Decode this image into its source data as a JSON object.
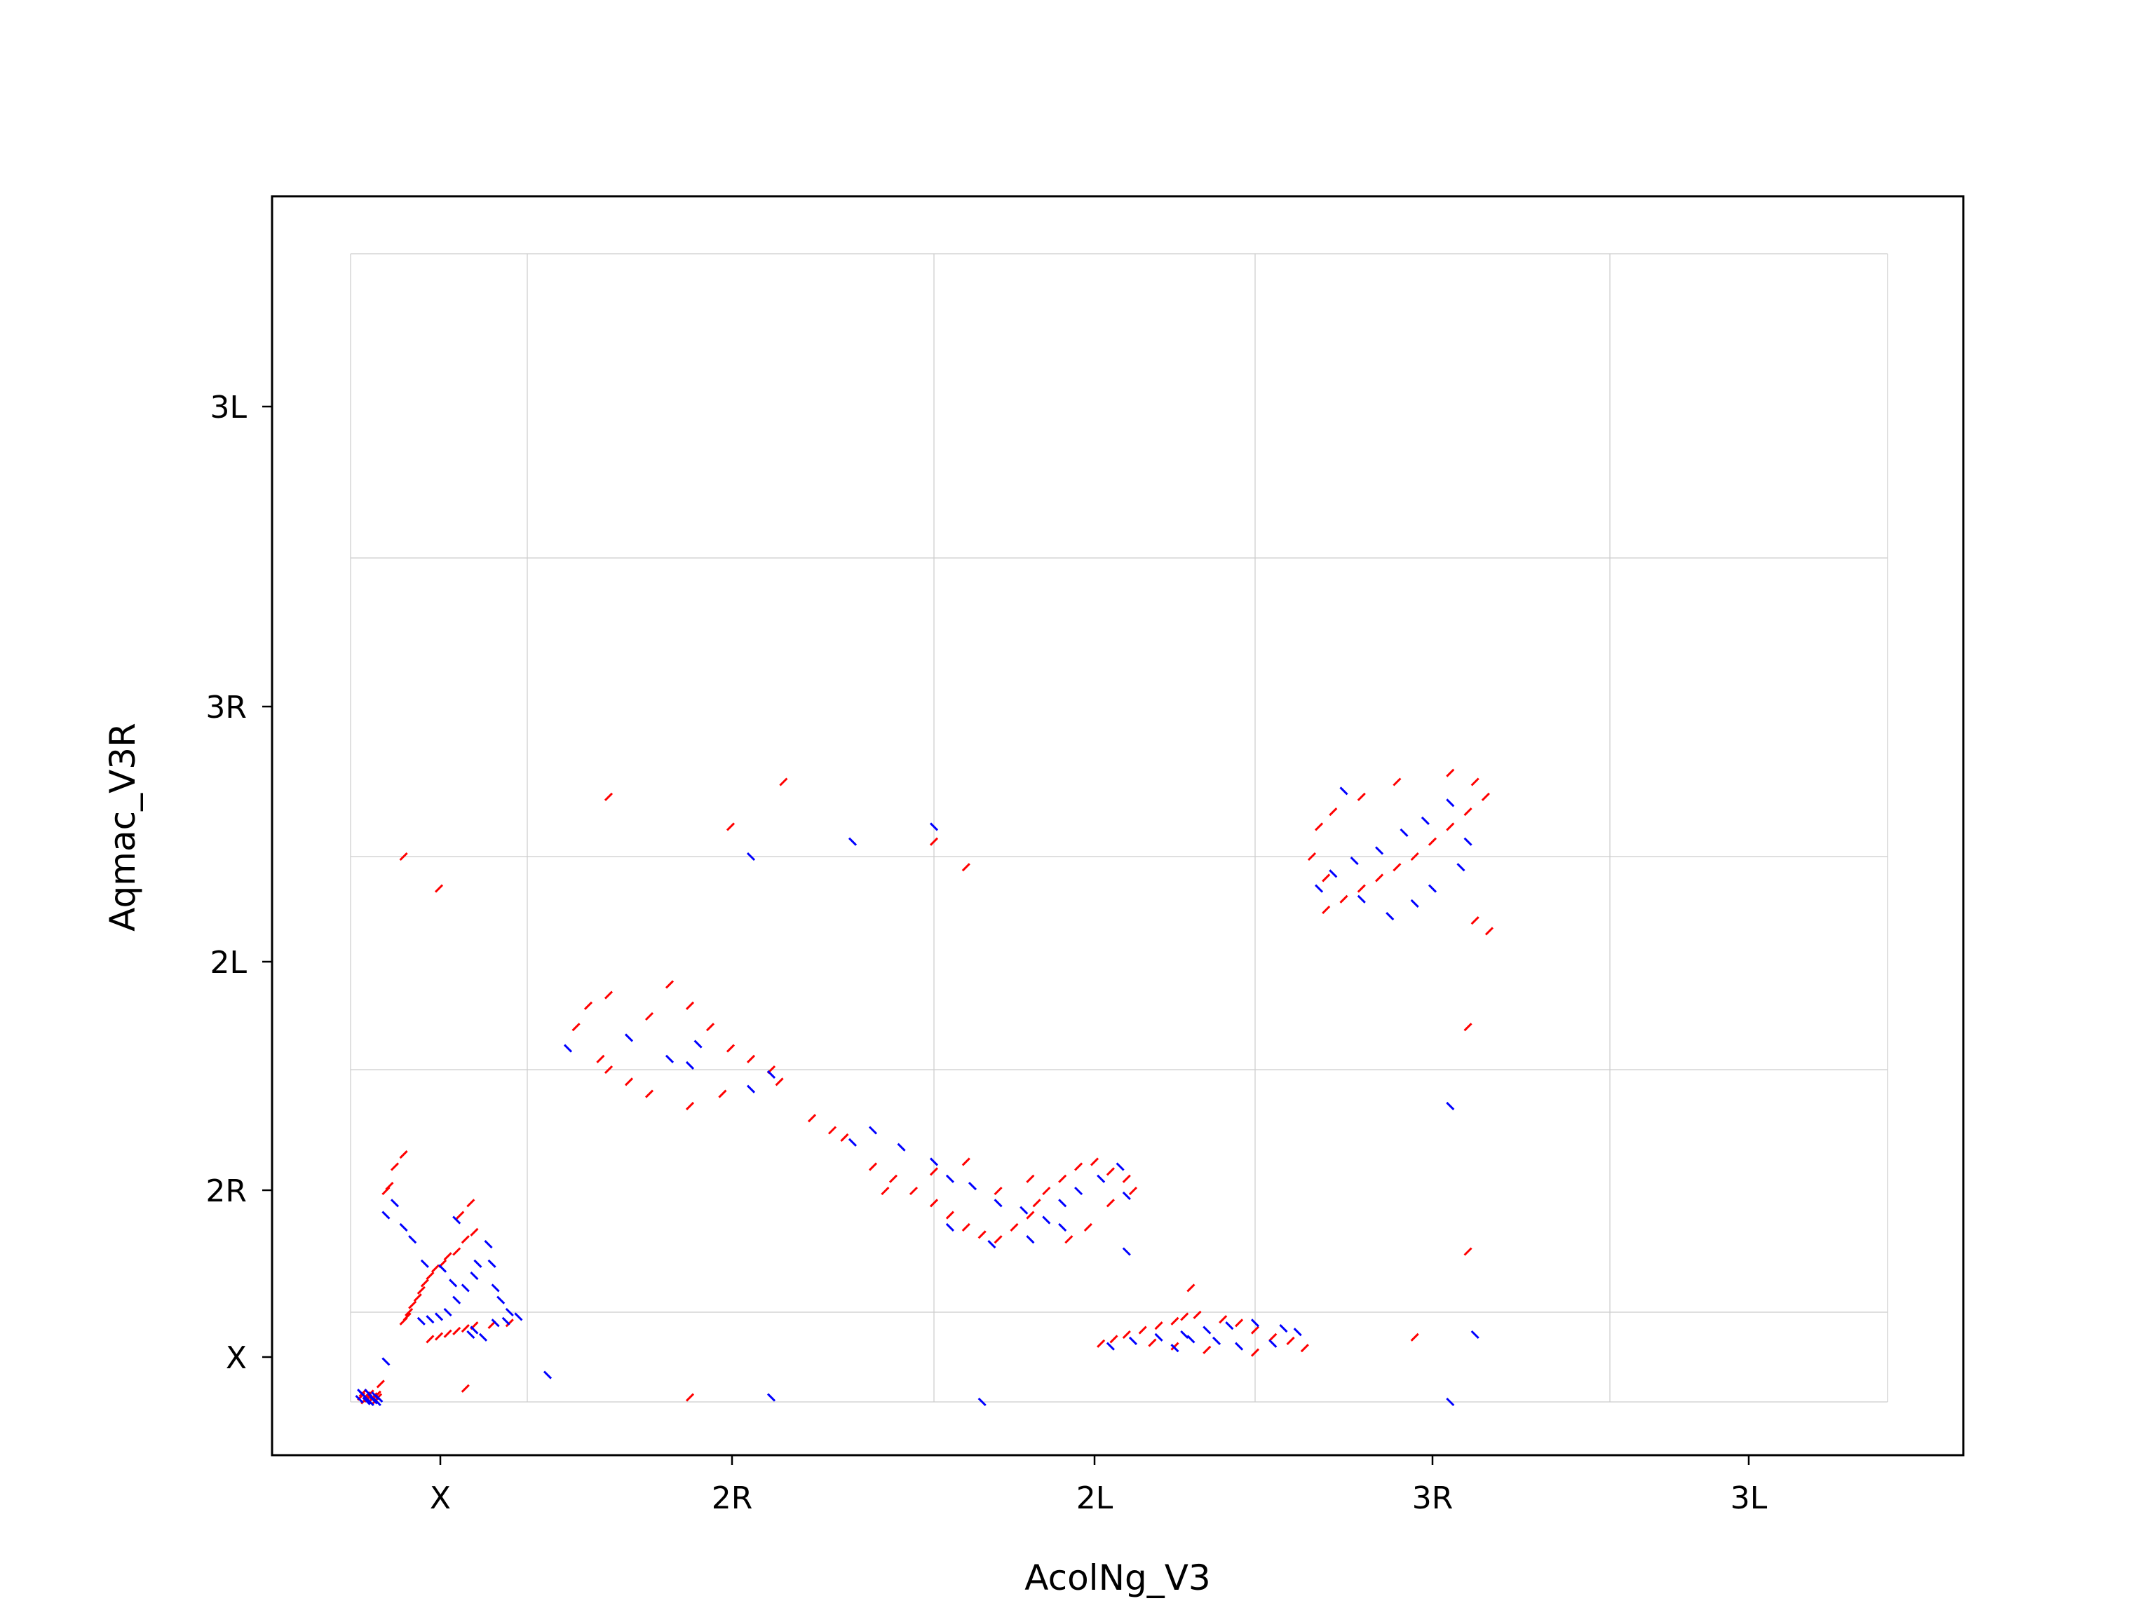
{
  "chart_data": {
    "type": "scatter",
    "title": "",
    "xlabel": "AcolNg_V3",
    "ylabel": "Aqmac_V3R",
    "x_chromosomes": [
      "X",
      "2R",
      "2L",
      "3R",
      "3L"
    ],
    "y_chromosomes": [
      "X",
      "2R",
      "2L",
      "3R",
      "3L"
    ],
    "grid": true,
    "legend": "none",
    "colors": {
      "forward": "#ff0000",
      "reverse": "#0000ff",
      "grid": "#cccccc",
      "frame": "#000000"
    },
    "note_units": "positions in cumulative genome coordinates (chromosome blocks in order X, 2R, 2L, 3R, 3L along each axis)",
    "series": [
      {
        "name": "",
        "color": "#ff0000",
        "points": [
          [
            0.08,
            0.02
          ],
          [
            0.09,
            0.07
          ],
          [
            0.1,
            0.04
          ],
          [
            0.11,
            0.09
          ],
          [
            0.12,
            0.03
          ],
          [
            0.13,
            0.06
          ],
          [
            0.14,
            0.01
          ],
          [
            0.15,
            0.08
          ],
          [
            0.06,
            0.06
          ],
          [
            0.07,
            0.1
          ],
          [
            0.155,
            0.05
          ],
          [
            0.17,
            0.2
          ],
          [
            0.45,
            0.7
          ],
          [
            0.5,
            0.73
          ],
          [
            0.55,
            0.76
          ],
          [
            0.6,
            0.79
          ],
          [
            0.65,
            0.82
          ],
          [
            0.7,
            0.85
          ],
          [
            0.8,
            0.86
          ],
          [
            0.9,
            0.88
          ],
          [
            0.3,
            0.9
          ],
          [
            0.32,
            0.95
          ],
          [
            0.33,
            1.0
          ],
          [
            0.35,
            1.03
          ],
          [
            0.38,
            1.06
          ],
          [
            0.4,
            1.09
          ],
          [
            0.42,
            1.12
          ],
          [
            0.45,
            1.15
          ],
          [
            0.48,
            1.18
          ],
          [
            0.52,
            1.2
          ],
          [
            0.55,
            1.23
          ],
          [
            0.6,
            1.25
          ],
          [
            0.65,
            1.3
          ],
          [
            0.7,
            1.33
          ],
          [
            0.2,
            1.5
          ],
          [
            0.22,
            1.52
          ],
          [
            0.25,
            1.6
          ],
          [
            0.3,
            1.65
          ],
          [
            0.62,
            1.4
          ],
          [
            0.68,
            1.45
          ],
          [
            1.12,
            2.2
          ],
          [
            1.15,
            2.3
          ],
          [
            1.2,
            2.35
          ],
          [
            1.3,
            2.25
          ],
          [
            1.35,
            2.4
          ],
          [
            1.4,
            2.3
          ],
          [
            1.45,
            2.2
          ],
          [
            1.5,
            2.1
          ],
          [
            1.55,
            2.05
          ],
          [
            1.6,
            2.0
          ],
          [
            1.62,
            1.95
          ],
          [
            1.48,
            1.9
          ],
          [
            1.4,
            1.85
          ],
          [
            1.3,
            1.9
          ],
          [
            1.25,
            1.95
          ],
          [
            1.2,
            2.0
          ],
          [
            1.18,
            2.05
          ],
          [
            1.7,
            1.8
          ],
          [
            1.75,
            1.75
          ],
          [
            1.78,
            1.72
          ],
          [
            1.85,
            1.6
          ],
          [
            1.9,
            1.55
          ],
          [
            1.95,
            1.5
          ],
          [
            2.0,
            1.45
          ],
          [
            2.05,
            1.4
          ],
          [
            2.1,
            1.35
          ],
          [
            2.15,
            1.32
          ],
          [
            2.2,
            1.3
          ],
          [
            2.25,
            1.35
          ],
          [
            2.3,
            1.4
          ],
          [
            2.32,
            1.45
          ],
          [
            2.35,
            1.5
          ],
          [
            2.4,
            1.55
          ],
          [
            2.45,
            1.6
          ],
          [
            2.5,
            1.62
          ],
          [
            2.55,
            1.58
          ],
          [
            2.6,
            1.55
          ],
          [
            2.62,
            1.5
          ],
          [
            2.55,
            1.45
          ],
          [
            2.48,
            1.35
          ],
          [
            2.42,
            1.3
          ],
          [
            1.88,
            1.5
          ],
          [
            2.0,
            1.58
          ],
          [
            2.1,
            1.62
          ],
          [
            2.2,
            1.5
          ],
          [
            2.3,
            1.55
          ],
          [
            2.52,
            0.65
          ],
          [
            2.56,
            0.7
          ],
          [
            2.6,
            0.75
          ],
          [
            2.65,
            0.8
          ],
          [
            2.7,
            0.85
          ],
          [
            2.75,
            0.9
          ],
          [
            2.78,
            0.95
          ],
          [
            2.82,
            0.97
          ],
          [
            2.9,
            0.92
          ],
          [
            2.95,
            0.88
          ],
          [
            3.0,
            0.8
          ],
          [
            3.05,
            0.72
          ],
          [
            3.1,
            0.68
          ],
          [
            3.14,
            0.6
          ],
          [
            3.0,
            0.55
          ],
          [
            2.85,
            0.58
          ],
          [
            2.75,
            0.62
          ],
          [
            2.68,
            0.66
          ],
          [
            3.2,
            2.75
          ],
          [
            3.25,
            2.8
          ],
          [
            3.3,
            2.85
          ],
          [
            3.35,
            2.9
          ],
          [
            3.4,
            2.95
          ],
          [
            3.45,
            3.0
          ],
          [
            3.5,
            3.05
          ],
          [
            3.55,
            3.1
          ],
          [
            3.6,
            3.15
          ],
          [
            3.65,
            3.2
          ],
          [
            3.62,
            3.25
          ],
          [
            3.55,
            3.28
          ],
          [
            3.4,
            3.25
          ],
          [
            3.3,
            3.2
          ],
          [
            3.22,
            3.15
          ],
          [
            3.18,
            3.1
          ],
          [
            3.16,
            3.0
          ],
          [
            3.2,
            2.9
          ],
          [
            3.62,
            2.7
          ],
          [
            3.66,
            2.65
          ],
          [
            0.3,
            3.0
          ],
          [
            0.5,
            2.85
          ],
          [
            1.2,
            3.2
          ],
          [
            1.5,
            3.1
          ],
          [
            1.63,
            3.25
          ],
          [
            2.0,
            3.05
          ],
          [
            2.1,
            2.95
          ],
          [
            2.8,
            1.1
          ],
          [
            3.45,
            0.72
          ],
          [
            3.6,
            1.25
          ],
          [
            3.6,
            2.2
          ],
          [
            1.4,
            0.05
          ],
          [
            0.65,
            0.15
          ]
        ]
      },
      {
        "name": "",
        "color": "#0000ff",
        "points": [
          [
            0.05,
            0.03
          ],
          [
            0.07,
            0.08
          ],
          [
            0.09,
            0.01
          ],
          [
            0.1,
            0.1
          ],
          [
            0.12,
            0.05
          ],
          [
            0.13,
            0.02
          ],
          [
            0.14,
            0.07
          ],
          [
            0.16,
            0.04
          ],
          [
            0.06,
            0.1
          ],
          [
            0.11,
            0.0
          ],
          [
            0.15,
            0.0
          ],
          [
            0.4,
            0.9
          ],
          [
            0.45,
            0.92
          ],
          [
            0.5,
            0.95
          ],
          [
            0.55,
            1.0
          ],
          [
            0.6,
            1.05
          ],
          [
            0.58,
            1.12
          ],
          [
            0.52,
            1.18
          ],
          [
            0.42,
            1.2
          ],
          [
            0.35,
            1.3
          ],
          [
            0.3,
            1.35
          ],
          [
            0.65,
            1.1
          ],
          [
            0.7,
            1.15
          ],
          [
            0.72,
            1.2
          ],
          [
            0.78,
            1.28
          ],
          [
            0.8,
            1.2
          ],
          [
            0.82,
            1.1
          ],
          [
            0.85,
            1.05
          ],
          [
            0.9,
            1.0
          ],
          [
            0.95,
            0.95
          ],
          [
            0.88,
            0.9
          ],
          [
            0.82,
            0.88
          ],
          [
            0.7,
            0.8
          ],
          [
            0.68,
            0.75
          ],
          [
            0.75,
            0.72
          ],
          [
            0.2,
            1.4
          ],
          [
            0.25,
            1.45
          ],
          [
            0.6,
            1.38
          ],
          [
            1.1,
            2.1
          ],
          [
            1.25,
            2.15
          ],
          [
            1.35,
            2.05
          ],
          [
            1.42,
            2.12
          ],
          [
            1.6,
            1.98
          ],
          [
            1.55,
            1.92
          ],
          [
            1.4,
            2.02
          ],
          [
            1.8,
            1.7
          ],
          [
            1.85,
            1.75
          ],
          [
            1.92,
            1.68
          ],
          [
            2.0,
            1.62
          ],
          [
            2.05,
            1.55
          ],
          [
            2.12,
            1.52
          ],
          [
            2.2,
            1.45
          ],
          [
            2.28,
            1.42
          ],
          [
            2.35,
            1.38
          ],
          [
            2.4,
            1.45
          ],
          [
            2.45,
            1.5
          ],
          [
            2.52,
            1.55
          ],
          [
            2.58,
            1.6
          ],
          [
            2.6,
            1.48
          ],
          [
            2.4,
            1.35
          ],
          [
            2.3,
            1.3
          ],
          [
            2.18,
            1.28
          ],
          [
            2.05,
            1.35
          ],
          [
            2.55,
            0.62
          ],
          [
            2.62,
            0.68
          ],
          [
            2.7,
            0.72
          ],
          [
            2.78,
            0.75
          ],
          [
            2.85,
            0.8
          ],
          [
            2.92,
            0.85
          ],
          [
            3.0,
            0.88
          ],
          [
            3.08,
            0.82
          ],
          [
            3.12,
            0.78
          ],
          [
            3.05,
            0.65
          ],
          [
            2.95,
            0.62
          ],
          [
            2.88,
            0.68
          ],
          [
            2.8,
            0.7
          ],
          [
            2.75,
            0.6
          ],
          [
            3.18,
            2.85
          ],
          [
            3.22,
            2.92
          ],
          [
            3.28,
            2.98
          ],
          [
            3.35,
            3.02
          ],
          [
            3.42,
            3.08
          ],
          [
            3.48,
            3.12
          ],
          [
            3.55,
            3.18
          ],
          [
            3.6,
            3.05
          ],
          [
            3.58,
            2.95
          ],
          [
            3.5,
            2.85
          ],
          [
            3.45,
            2.78
          ],
          [
            3.38,
            2.72
          ],
          [
            3.3,
            2.8
          ],
          [
            3.25,
            3.22
          ],
          [
            1.55,
            3.0
          ],
          [
            1.8,
            3.05
          ],
          [
            2.0,
            3.1
          ],
          [
            2.6,
            1.25
          ],
          [
            3.55,
            1.85
          ],
          [
            3.62,
            0.75
          ],
          [
            0.2,
            0.45
          ],
          [
            1.6,
            0.05
          ],
          [
            2.15,
            0.0
          ],
          [
            3.55,
            0.0
          ],
          [
            1.05,
            0.3
          ]
        ]
      }
    ]
  }
}
